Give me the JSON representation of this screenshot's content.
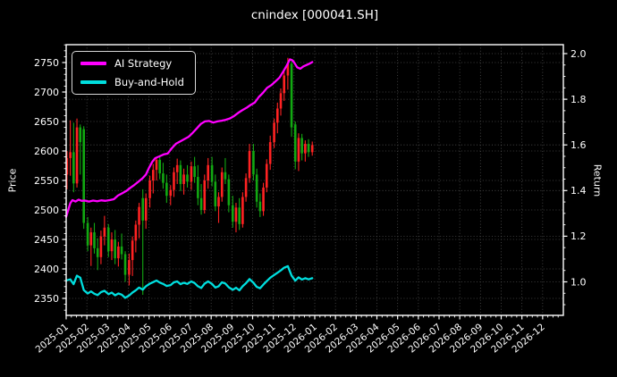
{
  "title": "cnindex [000041.SH]",
  "colors": {
    "background": "#000000",
    "text": "#ffffff",
    "grid": "#4f4f4f",
    "spine": "#ffffff",
    "ai_line": "#ff00ff",
    "bh_line": "#00dede",
    "candle_up": "#ff2222",
    "candle_down": "#12a812"
  },
  "chart_data": {
    "type": "candlestick_with_lines",
    "title": "cnindex [000041.SH]",
    "x_unit": "months since 2025-01",
    "x_ticks": [
      "2025-01",
      "2025-02",
      "2025-03",
      "2025-04",
      "2025-05",
      "2025-06",
      "2025-07",
      "2025-08",
      "2025-09",
      "2025-10",
      "2025-11",
      "2025-12",
      "2026-01",
      "2026-02",
      "2026-03",
      "2026-04",
      "2026-05",
      "2026-06",
      "2026-07",
      "2026-08",
      "2026-09",
      "2026-10",
      "2026-11",
      "2026-12"
    ],
    "price_axis": {
      "label": "Price",
      "ticks": [
        2750,
        2700,
        2650,
        2600,
        2550,
        2500,
        2450,
        2400,
        2350
      ],
      "ylim": [
        2321,
        2780
      ],
      "minor_step": 10
    },
    "return_axis": {
      "label": "Return",
      "ticks": [
        2.0,
        1.8,
        1.6,
        1.4,
        1.2,
        1.0
      ],
      "ylim": [
        0.853,
        2.039
      ],
      "minor_step": 0.05
    },
    "candle_convention": "red=up, green=down",
    "candles": [
      [
        0.04,
        2560,
        2600,
        2535,
        2588
      ],
      [
        0.2,
        2588,
        2652,
        2558,
        2598
      ],
      [
        0.36,
        2598,
        2648,
        2530,
        2545
      ],
      [
        0.52,
        2545,
        2655,
        2538,
        2640
      ],
      [
        0.68,
        2640,
        2645,
        2560,
        2615
      ],
      [
        0.85,
        2637,
        2642,
        2468,
        2478
      ],
      [
        1.04,
        2478,
        2488,
        2430,
        2440
      ],
      [
        1.2,
        2440,
        2470,
        2405,
        2462
      ],
      [
        1.36,
        2462,
        2478,
        2426,
        2435
      ],
      [
        1.52,
        2435,
        2452,
        2398,
        2420
      ],
      [
        1.68,
        2420,
        2465,
        2408,
        2455
      ],
      [
        1.85,
        2455,
        2490,
        2440,
        2470
      ],
      [
        2.04,
        2470,
        2476,
        2420,
        2430
      ],
      [
        2.2,
        2430,
        2462,
        2415,
        2450
      ],
      [
        2.36,
        2450,
        2466,
        2408,
        2418
      ],
      [
        2.52,
        2418,
        2446,
        2404,
        2438
      ],
      [
        2.68,
        2438,
        2460,
        2416,
        2425
      ],
      [
        2.85,
        2425,
        2430,
        2378,
        2390
      ],
      [
        3.04,
        2390,
        2426,
        2372,
        2415
      ],
      [
        3.2,
        2415,
        2455,
        2388,
        2448
      ],
      [
        3.36,
        2448,
        2482,
        2428,
        2475
      ],
      [
        3.52,
        2475,
        2512,
        2452,
        2505
      ],
      [
        3.7,
        2520,
        2535,
        2356,
        2482
      ],
      [
        3.85,
        2482,
        2528,
        2468,
        2520
      ],
      [
        4.04,
        2520,
        2558,
        2504,
        2550
      ],
      [
        4.2,
        2550,
        2578,
        2528,
        2568
      ],
      [
        4.36,
        2568,
        2590,
        2550,
        2585
      ],
      [
        4.52,
        2585,
        2592,
        2552,
        2562
      ],
      [
        4.68,
        2562,
        2580,
        2536,
        2546
      ],
      [
        4.85,
        2546,
        2560,
        2512,
        2524
      ],
      [
        5.04,
        2524,
        2542,
        2508,
        2534
      ],
      [
        5.2,
        2534,
        2572,
        2522,
        2564
      ],
      [
        5.36,
        2564,
        2587,
        2544,
        2576
      ],
      [
        5.52,
        2576,
        2584,
        2532,
        2544
      ],
      [
        5.68,
        2544,
        2570,
        2526,
        2560
      ],
      [
        5.85,
        2560,
        2576,
        2538,
        2548
      ],
      [
        6.04,
        2548,
        2582,
        2534,
        2574
      ],
      [
        6.2,
        2574,
        2590,
        2546,
        2556
      ],
      [
        6.36,
        2556,
        2576,
        2508,
        2520
      ],
      [
        6.52,
        2520,
        2544,
        2492,
        2500
      ],
      [
        6.68,
        2500,
        2560,
        2494,
        2550
      ],
      [
        6.85,
        2550,
        2588,
        2536,
        2576
      ],
      [
        7.04,
        2576,
        2590,
        2540,
        2548
      ],
      [
        7.2,
        2548,
        2560,
        2498,
        2506
      ],
      [
        7.36,
        2506,
        2530,
        2478,
        2522
      ],
      [
        7.52,
        2522,
        2572,
        2514,
        2564
      ],
      [
        7.68,
        2564,
        2588,
        2544,
        2552
      ],
      [
        7.85,
        2552,
        2560,
        2496,
        2508
      ],
      [
        8.04,
        2508,
        2524,
        2470,
        2480
      ],
      [
        8.2,
        2480,
        2512,
        2462,
        2504
      ],
      [
        8.36,
        2504,
        2520,
        2466,
        2476
      ],
      [
        8.52,
        2476,
        2530,
        2470,
        2522
      ],
      [
        8.68,
        2522,
        2562,
        2514,
        2554
      ],
      [
        8.85,
        2554,
        2612,
        2546,
        2600
      ],
      [
        9.04,
        2600,
        2612,
        2550,
        2560
      ],
      [
        9.2,
        2560,
        2570,
        2504,
        2514
      ],
      [
        9.36,
        2514,
        2528,
        2488,
        2498
      ],
      [
        9.52,
        2498,
        2546,
        2490,
        2538
      ],
      [
        9.68,
        2538,
        2586,
        2530,
        2578
      ],
      [
        9.85,
        2578,
        2626,
        2568,
        2615
      ],
      [
        10.04,
        2615,
        2655,
        2605,
        2648
      ],
      [
        10.2,
        2648,
        2682,
        2630,
        2672
      ],
      [
        10.36,
        2672,
        2706,
        2660,
        2698
      ],
      [
        10.52,
        2698,
        2735,
        2685,
        2728
      ],
      [
        10.7,
        2728,
        2758,
        2704,
        2748
      ],
      [
        10.88,
        2748,
        2752,
        2624,
        2640
      ],
      [
        11.06,
        2645,
        2650,
        2569,
        2582
      ],
      [
        11.22,
        2582,
        2630,
        2566,
        2622
      ],
      [
        11.38,
        2622,
        2629,
        2584,
        2596
      ],
      [
        11.54,
        2596,
        2618,
        2582,
        2612
      ],
      [
        11.7,
        2612,
        2620,
        2590,
        2598
      ],
      [
        11.88,
        2598,
        2616,
        2592,
        2610
      ]
    ],
    "series": [
      {
        "name": "AI Strategy",
        "axis": "return",
        "color": "#ff00ff",
        "points": [
          [
            0,
            1.285
          ],
          [
            0.1,
            1.315
          ],
          [
            0.2,
            1.345
          ],
          [
            0.3,
            1.358
          ],
          [
            0.45,
            1.352
          ],
          [
            0.6,
            1.36
          ],
          [
            0.75,
            1.355
          ],
          [
            0.9,
            1.356
          ],
          [
            1.1,
            1.352
          ],
          [
            1.3,
            1.356
          ],
          [
            1.5,
            1.353
          ],
          [
            1.7,
            1.357
          ],
          [
            1.9,
            1.355
          ],
          [
            2.1,
            1.358
          ],
          [
            2.3,
            1.362
          ],
          [
            2.5,
            1.378
          ],
          [
            2.7,
            1.388
          ],
          [
            2.9,
            1.398
          ],
          [
            3.1,
            1.412
          ],
          [
            3.3,
            1.425
          ],
          [
            3.5,
            1.44
          ],
          [
            3.7,
            1.455
          ],
          [
            3.85,
            1.47
          ],
          [
            4.0,
            1.5
          ],
          [
            4.15,
            1.525
          ],
          [
            4.3,
            1.542
          ],
          [
            4.5,
            1.55
          ],
          [
            4.7,
            1.558
          ],
          [
            4.9,
            1.562
          ],
          [
            5.1,
            1.585
          ],
          [
            5.3,
            1.605
          ],
          [
            5.5,
            1.615
          ],
          [
            5.7,
            1.625
          ],
          [
            5.9,
            1.635
          ],
          [
            6.1,
            1.652
          ],
          [
            6.3,
            1.672
          ],
          [
            6.5,
            1.692
          ],
          [
            6.7,
            1.703
          ],
          [
            6.9,
            1.705
          ],
          [
            7.1,
            1.698
          ],
          [
            7.3,
            1.703
          ],
          [
            7.5,
            1.706
          ],
          [
            7.7,
            1.71
          ],
          [
            7.9,
            1.716
          ],
          [
            8.1,
            1.726
          ],
          [
            8.3,
            1.74
          ],
          [
            8.5,
            1.752
          ],
          [
            8.7,
            1.762
          ],
          [
            8.9,
            1.775
          ],
          [
            9.1,
            1.785
          ],
          [
            9.3,
            1.81
          ],
          [
            9.5,
            1.828
          ],
          [
            9.7,
            1.85
          ],
          [
            9.9,
            1.862
          ],
          [
            10.1,
            1.878
          ],
          [
            10.3,
            1.895
          ],
          [
            10.5,
            1.925
          ],
          [
            10.65,
            1.948
          ],
          [
            10.8,
            1.975
          ],
          [
            10.9,
            1.972
          ],
          [
            11.0,
            1.962
          ],
          [
            11.15,
            1.94
          ],
          [
            11.3,
            1.934
          ],
          [
            11.45,
            1.944
          ],
          [
            11.6,
            1.95
          ],
          [
            11.75,
            1.956
          ],
          [
            11.88,
            1.963
          ]
        ]
      },
      {
        "name": "Buy-and-Hold",
        "axis": "return",
        "color": "#00dede",
        "points": [
          [
            0.04,
            1.007
          ],
          [
            0.2,
            1.011
          ],
          [
            0.36,
            0.99
          ],
          [
            0.52,
            1.027
          ],
          [
            0.68,
            1.018
          ],
          [
            0.85,
            0.964
          ],
          [
            1.04,
            0.949
          ],
          [
            1.2,
            0.958
          ],
          [
            1.36,
            0.948
          ],
          [
            1.52,
            0.942
          ],
          [
            1.68,
            0.955
          ],
          [
            1.85,
            0.961
          ],
          [
            2.04,
            0.946
          ],
          [
            2.2,
            0.953
          ],
          [
            2.36,
            0.941
          ],
          [
            2.52,
            0.949
          ],
          [
            2.68,
            0.944
          ],
          [
            2.85,
            0.93
          ],
          [
            3.04,
            0.94
          ],
          [
            3.2,
            0.953
          ],
          [
            3.36,
            0.963
          ],
          [
            3.52,
            0.975
          ],
          [
            3.7,
            0.966
          ],
          [
            3.85,
            0.981
          ],
          [
            4.04,
            0.992
          ],
          [
            4.2,
            0.999
          ],
          [
            4.36,
            1.006
          ],
          [
            4.52,
            0.997
          ],
          [
            4.68,
            0.991
          ],
          [
            4.85,
            0.982
          ],
          [
            5.04,
            0.986
          ],
          [
            5.2,
            0.998
          ],
          [
            5.36,
            1.002
          ],
          [
            5.52,
            0.99
          ],
          [
            5.68,
            0.996
          ],
          [
            5.85,
            0.991
          ],
          [
            6.04,
            1.002
          ],
          [
            6.2,
            0.995
          ],
          [
            6.36,
            0.981
          ],
          [
            6.52,
            0.973
          ],
          [
            6.68,
            0.992
          ],
          [
            6.85,
            1.002
          ],
          [
            7.04,
            0.991
          ],
          [
            7.2,
            0.975
          ],
          [
            7.36,
            0.981
          ],
          [
            7.52,
            0.998
          ],
          [
            7.68,
            0.993
          ],
          [
            7.85,
            0.976
          ],
          [
            8.04,
            0.965
          ],
          [
            8.2,
            0.974
          ],
          [
            8.36,
            0.963
          ],
          [
            8.52,
            0.981
          ],
          [
            8.68,
            0.994
          ],
          [
            8.85,
            1.012
          ],
          [
            9.04,
            0.996
          ],
          [
            9.2,
            0.978
          ],
          [
            9.36,
            0.972
          ],
          [
            9.52,
            0.988
          ],
          [
            9.68,
            1.003
          ],
          [
            9.85,
            1.018
          ],
          [
            10.04,
            1.03
          ],
          [
            10.2,
            1.04
          ],
          [
            10.36,
            1.05
          ],
          [
            10.52,
            1.062
          ],
          [
            10.7,
            1.069
          ],
          [
            10.88,
            1.027
          ],
          [
            11.06,
            1.005
          ],
          [
            11.22,
            1.02
          ],
          [
            11.38,
            1.01
          ],
          [
            11.54,
            1.016
          ],
          [
            11.7,
            1.011
          ],
          [
            11.88,
            1.016
          ]
        ]
      }
    ]
  },
  "legend": {
    "items": [
      "AI Strategy",
      "Buy-and-Hold"
    ]
  }
}
